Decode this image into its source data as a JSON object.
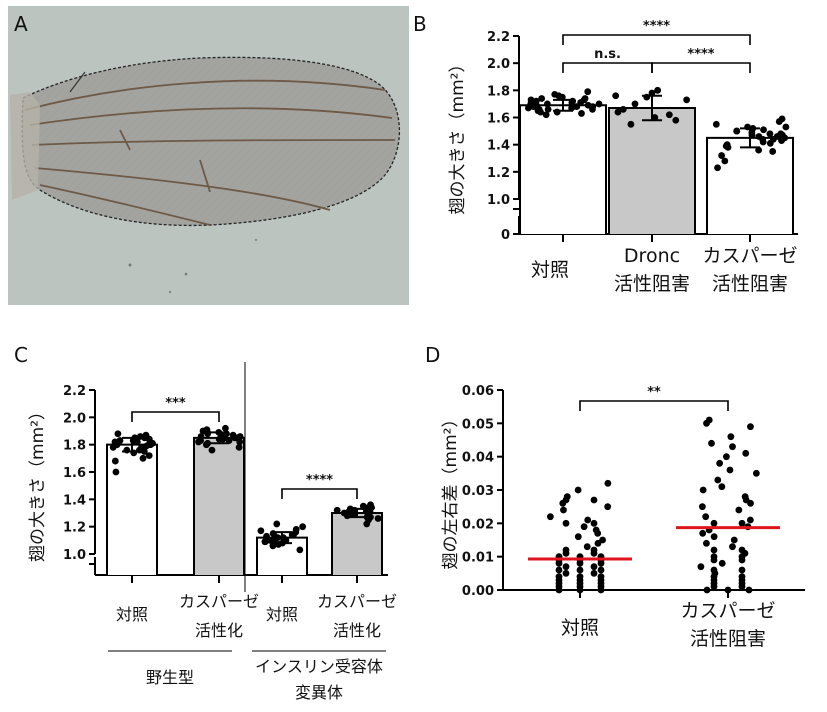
{
  "panel_labels": {
    "a": "A",
    "b": "B",
    "c": "C",
    "d": "D"
  },
  "colors": {
    "bar_control": "#ffffff",
    "bar_treatment": "#c8c8c8",
    "points": "#000000",
    "median": "#e0141e",
    "wing_background": "#bcc4c0",
    "wing_membrane": "#a3a3a0",
    "wing_vein": "#6e5a46"
  },
  "chart_data": [
    {
      "panel": "B",
      "type": "bar",
      "ylabel": "翅の大きさ（mm²）",
      "ylim": [
        1.0,
        2.2
      ],
      "axis_break": true,
      "yticks": [
        "0",
        "1.0",
        "1.2",
        "1.4",
        "1.6",
        "1.8",
        "2.0",
        "2.2"
      ],
      "categories": [
        {
          "line1": "対照",
          "line2": ""
        },
        {
          "line1": "Dronc",
          "line2": "活性阻害"
        },
        {
          "line1": "カスパーゼ",
          "line2": "活性阻害"
        }
      ],
      "values": [
        1.69,
        1.67,
        1.45
      ],
      "sd": [
        0.04,
        0.09,
        0.07
      ],
      "points": [
        [
          1.62,
          1.64,
          1.66,
          1.66,
          1.67,
          1.68,
          1.68,
          1.69,
          1.69,
          1.7,
          1.7,
          1.71,
          1.72,
          1.72,
          1.73,
          1.74,
          1.75,
          1.76,
          1.65,
          1.67,
          1.69,
          1.71,
          1.73,
          1.64,
          1.66,
          1.68,
          1.7,
          1.72,
          1.74,
          1.77,
          1.63,
          1.79
        ],
        [
          1.55,
          1.58,
          1.6,
          1.64,
          1.66,
          1.7,
          1.73,
          1.75,
          1.76,
          1.78,
          1.8,
          1.62
        ],
        [
          1.23,
          1.28,
          1.32,
          1.35,
          1.38,
          1.4,
          1.42,
          1.43,
          1.44,
          1.45,
          1.46,
          1.47,
          1.48,
          1.49,
          1.5,
          1.51,
          1.52,
          1.53,
          1.55,
          1.57,
          1.59,
          1.36,
          1.41,
          1.46,
          1.48,
          1.44,
          1.5,
          1.39,
          1.47,
          1.53
        ]
      ],
      "comparisons": [
        {
          "label": "****",
          "from": 0,
          "to": 2
        },
        {
          "label": "n.s.",
          "from": 0,
          "to": 1
        },
        {
          "label": "****",
          "from": 1,
          "to": 2
        }
      ]
    },
    {
      "panel": "C",
      "type": "bar",
      "ylabel": "翅の大きさ（mm²）",
      "ylim": [
        1.0,
        2.2
      ],
      "axis_break": true,
      "yticks": [
        "1.0",
        "1.2",
        "1.4",
        "1.6",
        "1.8",
        "2.0",
        "2.2"
      ],
      "categories": [
        {
          "line1": "対照",
          "line2": ""
        },
        {
          "line1": "カスパーゼ",
          "line2": "活性化"
        },
        {
          "line1": "対照",
          "line2": ""
        },
        {
          "line1": "カスパーゼ",
          "line2": "活性化"
        }
      ],
      "groups": [
        {
          "line1": "野生型",
          "line2": ""
        },
        {
          "line1": "インスリン受容体",
          "line2": "変異体"
        }
      ],
      "values": [
        1.8,
        1.85,
        1.12,
        1.3
      ],
      "sd": [
        0.05,
        0.04,
        0.04,
        0.03
      ],
      "points": [
        [
          1.6,
          1.68,
          1.72,
          1.74,
          1.75,
          1.76,
          1.77,
          1.78,
          1.79,
          1.8,
          1.8,
          1.81,
          1.82,
          1.83,
          1.84,
          1.85,
          1.86,
          1.87,
          1.78,
          1.81,
          1.83,
          1.76,
          1.88,
          1.79,
          1.82,
          1.7,
          1.85
        ],
        [
          1.76,
          1.78,
          1.8,
          1.81,
          1.82,
          1.83,
          1.84,
          1.85,
          1.85,
          1.86,
          1.87,
          1.88,
          1.89,
          1.9,
          1.91,
          1.92,
          1.84,
          1.86,
          1.83,
          1.87,
          1.82,
          1.89,
          1.86,
          1.85,
          1.88
        ],
        [
          1.03,
          1.06,
          1.07,
          1.08,
          1.09,
          1.1,
          1.11,
          1.12,
          1.12,
          1.13,
          1.14,
          1.15,
          1.16,
          1.18,
          1.2,
          1.22,
          1.11,
          1.13,
          1.1,
          1.14,
          1.09,
          1.17
        ],
        [
          1.22,
          1.25,
          1.26,
          1.27,
          1.28,
          1.29,
          1.3,
          1.3,
          1.31,
          1.32,
          1.33,
          1.34,
          1.35,
          1.36,
          1.29,
          1.31,
          1.28,
          1.33,
          1.3,
          1.32,
          1.27,
          1.34,
          1.31,
          1.29
        ]
      ],
      "comparisons": [
        {
          "label": "***",
          "from": 0,
          "to": 1
        },
        {
          "label": "****",
          "from": 2,
          "to": 3
        }
      ]
    },
    {
      "panel": "D",
      "type": "scatter",
      "ylabel": "翅の左右差（mm²）",
      "ylim": [
        0,
        0.06
      ],
      "yticks": [
        "0.00",
        "0.01",
        "0.02",
        "0.03",
        "0.04",
        "0.05",
        "0.06"
      ],
      "categories": [
        {
          "line1": "対照",
          "line2": ""
        },
        {
          "line1": "カスパーゼ",
          "line2": "活性阻害"
        }
      ],
      "medians": [
        0.0093,
        0.0187
      ],
      "points": [
        [
          0.032,
          0.03,
          0.028,
          0.027,
          0.027,
          0.026,
          0.025,
          0.024,
          0.022,
          0.021,
          0.02,
          0.02,
          0.019,
          0.018,
          0.017,
          0.016,
          0.015,
          0.014,
          0.013,
          0.012,
          0.012,
          0.011,
          0.011,
          0.01,
          0.01,
          0.01,
          0.009,
          0.009,
          0.009,
          0.008,
          0.008,
          0.008,
          0.007,
          0.007,
          0.006,
          0.006,
          0.006,
          0.005,
          0.005,
          0.004,
          0.004,
          0.004,
          0.003,
          0.003,
          0.003,
          0.002,
          0.002,
          0.002,
          0.001,
          0.001,
          0.001,
          0.0,
          0.0,
          0.0
        ],
        [
          0.051,
          0.05,
          0.049,
          0.046,
          0.044,
          0.043,
          0.041,
          0.04,
          0.038,
          0.036,
          0.035,
          0.033,
          0.031,
          0.03,
          0.028,
          0.027,
          0.026,
          0.025,
          0.024,
          0.022,
          0.021,
          0.02,
          0.02,
          0.019,
          0.018,
          0.017,
          0.016,
          0.015,
          0.014,
          0.013,
          0.012,
          0.011,
          0.01,
          0.01,
          0.009,
          0.008,
          0.007,
          0.006,
          0.005,
          0.004,
          0.004,
          0.003,
          0.002,
          0.002,
          0.001,
          0.001,
          0.0,
          0.0,
          0.0,
          0.003,
          0.006,
          0.009,
          0.012
        ]
      ],
      "comparisons": [
        {
          "label": "**",
          "from": 0,
          "to": 1
        }
      ]
    }
  ]
}
